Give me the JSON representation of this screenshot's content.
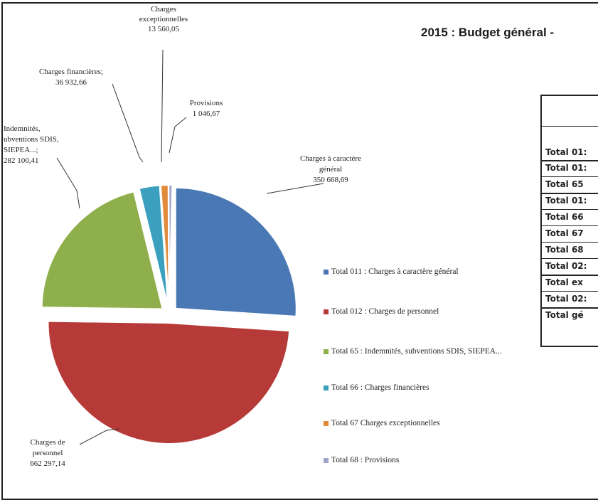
{
  "page_title": "2015 : Budget général -",
  "chart_data": {
    "type": "pie",
    "title": "",
    "slices": [
      {
        "legend": "Total 011 : Charges à caractère général",
        "label": [
          "Charges à caractère",
          "général",
          "350 668,69"
        ],
        "value": 350668.69,
        "color": "#4a78b4"
      },
      {
        "legend": "Total 012 : Charges de personnel",
        "label": [
          "Charges de",
          "personnel",
          "662 297,14"
        ],
        "value": 662297.14,
        "color": "#b63a38"
      },
      {
        "legend": "Total 65 : Indemnités, subventions SDIS, SIEPEA...",
        "label": [
          "Indemnités,",
          "ubventions SDIS,",
          "SIEPEA...;",
          "282 100,41"
        ],
        "value": 282100.41,
        "color": "#8faf4c"
      },
      {
        "legend": "Total 66 : Charges financières",
        "label": [
          "Charges financières;",
          "36 932,66"
        ],
        "value": 36932.66,
        "color": "#3aa0bd"
      },
      {
        "legend": "Total 67 Charges exceptionnelles",
        "label": [
          "Charges",
          "exceptionnelles",
          "13 560,05"
        ],
        "value": 13560.05,
        "color": "#e08a3a"
      },
      {
        "legend": "Total 68 : Provisions",
        "label": [
          "Provisions",
          "1 046,67"
        ],
        "value": 1046.67,
        "color": "#9fa6c8"
      }
    ],
    "legend_placement": "right"
  },
  "table": {
    "rows": [
      "Total 01:",
      "Total 01:",
      "Total 65",
      "Total 01:",
      "Total 66",
      "Total 67",
      "Total 68",
      "Total 02:",
      "Total ex",
      "Total 02:",
      "Total gé"
    ]
  }
}
